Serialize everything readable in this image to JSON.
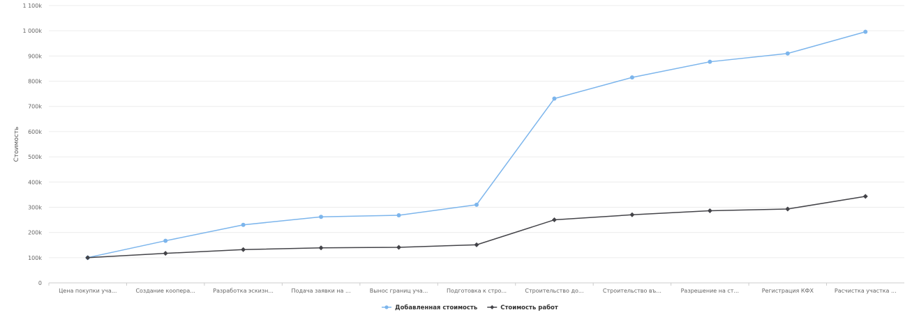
{
  "chart_data": {
    "type": "line",
    "ylabel": "Стоимость",
    "xlabel": "",
    "ylim": [
      0,
      1100000
    ],
    "yticks": [
      0,
      100000,
      200000,
      300000,
      400000,
      500000,
      600000,
      700000,
      800000,
      900000,
      1000000,
      1100000
    ],
    "ytick_labels": [
      "0",
      "100k",
      "200k",
      "300k",
      "400k",
      "500k",
      "600k",
      "700k",
      "800k",
      "900k",
      "1 000k",
      "1 100k"
    ],
    "categories": [
      "Цена покупки уча...",
      "Создание коопера...",
      "Разработка эскизн...",
      "Подача заявки на ...",
      "Вынос границ уча...",
      "Подготовка к стро...",
      "Строительство до...",
      "Строительство въ...",
      "Разрешение на ст...",
      "Регистрация КФХ",
      "Расчистка участка ..."
    ],
    "series": [
      {
        "name": "Добавленная стоимость",
        "color": "#7cb5ec",
        "marker": "circle",
        "values": [
          100000,
          167000,
          230000,
          262000,
          268000,
          310000,
          731000,
          815000,
          877000,
          910000,
          996000
        ]
      },
      {
        "name": "Стоимость работ",
        "color": "#434348",
        "marker": "diamond",
        "values": [
          100000,
          117000,
          132000,
          139000,
          141000,
          151000,
          250000,
          270000,
          286000,
          293000,
          343000
        ]
      }
    ],
    "grid": true,
    "legend_position": "bottom-center"
  }
}
